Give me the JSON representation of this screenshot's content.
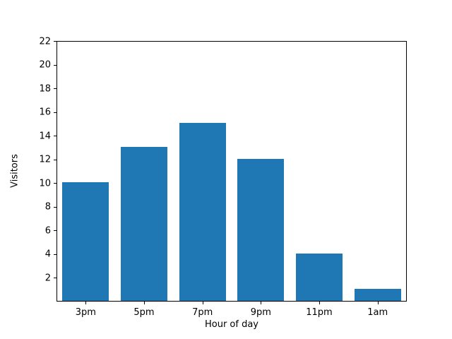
{
  "chart_data": {
    "type": "bar",
    "title": "",
    "categories": [
      "3pm",
      "5pm",
      "7pm",
      "9pm",
      "11pm",
      "1am"
    ],
    "values": [
      10,
      13,
      15,
      12,
      4,
      1
    ],
    "xlabel": "Hour of day",
    "ylabel": "Visitors",
    "yticks": [
      2,
      4,
      6,
      8,
      10,
      12,
      14,
      16,
      18,
      20,
      22
    ],
    "ylim": [
      0,
      22
    ],
    "bar_width_fraction": 0.8,
    "bar_color": "#1f77b4",
    "axis_color": "#000000",
    "background_color": "#ffffff",
    "grid": false,
    "legend": "none"
  }
}
